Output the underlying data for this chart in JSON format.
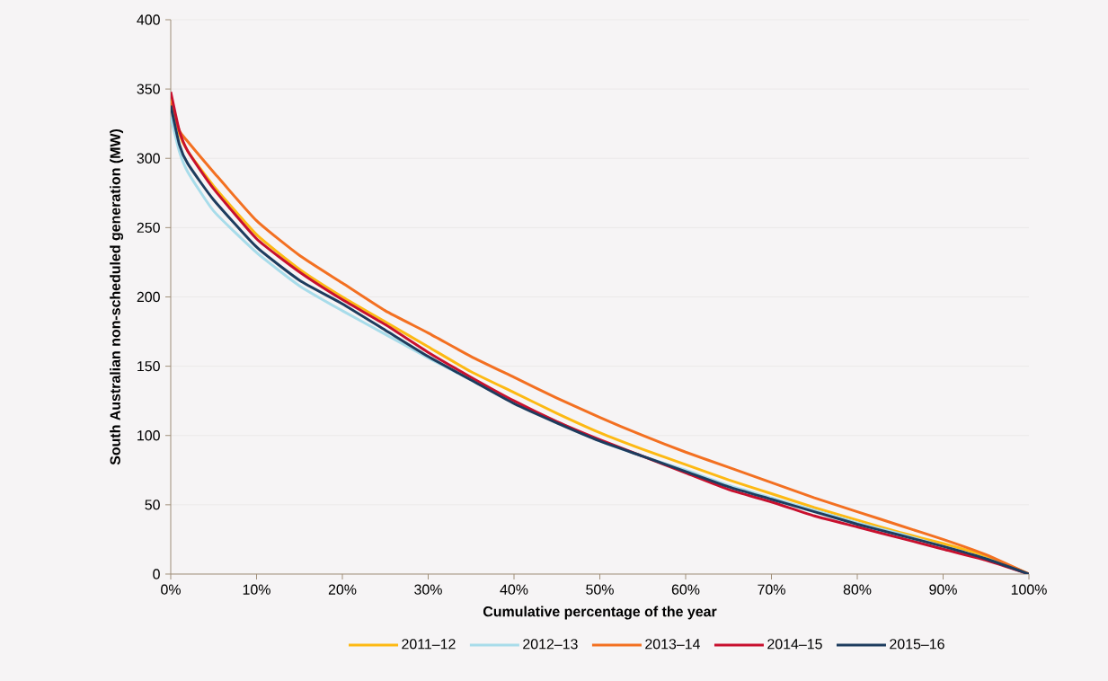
{
  "chart_data": {
    "type": "line",
    "xlabel": "Cumulative percentage of the year",
    "ylabel": "South Australian non-scheduled generation (MW)",
    "x": [
      0,
      1,
      2,
      5,
      10,
      15,
      20,
      25,
      30,
      35,
      40,
      45,
      50,
      55,
      60,
      65,
      70,
      75,
      80,
      85,
      90,
      95,
      100
    ],
    "series": [
      {
        "name": "2011–12",
        "color": "#fdb913",
        "values": [
          345,
          318,
          305,
          280,
          245,
          220,
          200,
          182,
          164,
          146,
          131,
          116,
          102,
          90,
          79,
          68,
          58,
          48,
          39,
          30,
          22,
          13,
          0
        ]
      },
      {
        "name": "2012–13",
        "color": "#a8dcea",
        "values": [
          330,
          305,
          290,
          262,
          232,
          208,
          190,
          173,
          156,
          140,
          124,
          110,
          96,
          85,
          75,
          64,
          55,
          46,
          37,
          29,
          20,
          11,
          0
        ]
      },
      {
        "name": "2013–14",
        "color": "#f37021",
        "values": [
          340,
          320,
          312,
          290,
          255,
          230,
          210,
          190,
          174,
          157,
          142,
          127,
          113,
          100,
          88,
          77,
          66,
          55,
          45,
          35,
          25,
          14,
          0
        ]
      },
      {
        "name": "2014–15",
        "color": "#c8102e",
        "values": [
          348,
          320,
          305,
          278,
          242,
          218,
          198,
          180,
          160,
          142,
          125,
          110,
          97,
          85,
          73,
          61,
          52,
          42,
          34,
          26,
          18,
          10,
          0
        ]
      },
      {
        "name": "2015–16",
        "color": "#1d3c5e",
        "values": [
          338,
          310,
          296,
          270,
          236,
          212,
          195,
          176,
          157,
          140,
          123,
          109,
          96,
          85,
          74,
          63,
          54,
          45,
          36,
          28,
          20,
          11,
          0
        ]
      }
    ],
    "xlim": [
      0,
      100
    ],
    "ylim": [
      0,
      400
    ],
    "xticks": [
      {
        "value": 0,
        "label": "0%"
      },
      {
        "value": 10,
        "label": "10%"
      },
      {
        "value": 20,
        "label": "20%"
      },
      {
        "value": 30,
        "label": "30%"
      },
      {
        "value": 40,
        "label": "40%"
      },
      {
        "value": 50,
        "label": "50%"
      },
      {
        "value": 60,
        "label": "60%"
      },
      {
        "value": 70,
        "label": "70%"
      },
      {
        "value": 80,
        "label": "80%"
      },
      {
        "value": 90,
        "label": "90%"
      },
      {
        "value": 100,
        "label": "100%"
      }
    ],
    "yticks": [
      0,
      50,
      100,
      150,
      200,
      250,
      300,
      350,
      400
    ],
    "grid": "y",
    "legend": "bottom",
    "marker": "none",
    "line_style": "solid"
  }
}
